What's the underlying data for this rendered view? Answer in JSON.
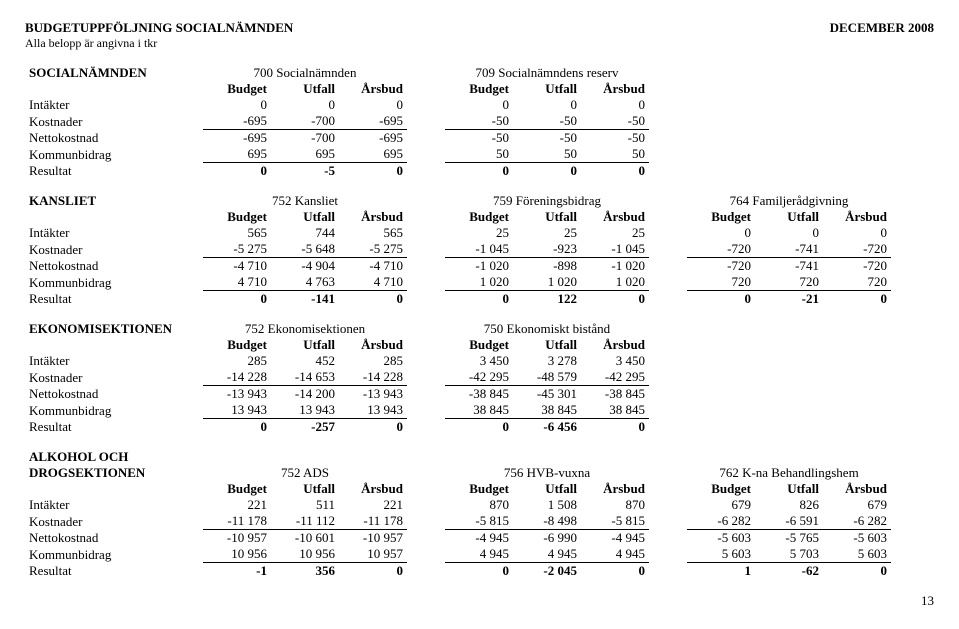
{
  "header": {
    "title_left": "BUDGETUPPFÖLJNING SOCIALNÄMNDEN",
    "title_right": "DECEMBER 2008",
    "subtitle": "Alla belopp är angivna i tkr"
  },
  "col_labels": {
    "budget": "Budget",
    "utfall": "Utfall",
    "arsbud": "Årsbud"
  },
  "row_labels": {
    "intakter": "Intäkter",
    "kostnader": "Kostnader",
    "nettokostnad": "Nettokostnad",
    "kommunbidrag": "Kommunbidrag",
    "resultat": "Resultat"
  },
  "sections": [
    {
      "left_label": "SOCIALNÄMNDEN",
      "groups": [
        {
          "title": "700 Socialnämnden"
        },
        {
          "title": "709 Socialnämndens reserv"
        }
      ],
      "rows": {
        "intakter": [
          [
            "0",
            "0",
            "0"
          ],
          [
            "0",
            "0",
            "0"
          ]
        ],
        "kostnader": [
          [
            "-695",
            "-700",
            "-695"
          ],
          [
            "-50",
            "-50",
            "-50"
          ]
        ],
        "nettokostnad": [
          [
            "-695",
            "-700",
            "-695"
          ],
          [
            "-50",
            "-50",
            "-50"
          ]
        ],
        "kommunbidrag": [
          [
            "695",
            "695",
            "695"
          ],
          [
            "50",
            "50",
            "50"
          ]
        ],
        "resultat": [
          [
            "0",
            "-5",
            "0"
          ],
          [
            "0",
            "0",
            "0"
          ]
        ]
      }
    },
    {
      "left_label": "KANSLIET",
      "groups": [
        {
          "title": "752 Kansliet"
        },
        {
          "title": "759 Föreningsbidrag"
        },
        {
          "title": "764 Familjerådgivning"
        }
      ],
      "rows": {
        "intakter": [
          [
            "565",
            "744",
            "565"
          ],
          [
            "25",
            "25",
            "25"
          ],
          [
            "0",
            "0",
            "0"
          ]
        ],
        "kostnader": [
          [
            "-5 275",
            "-5 648",
            "-5 275"
          ],
          [
            "-1 045",
            "-923",
            "-1 045"
          ],
          [
            "-720",
            "-741",
            "-720"
          ]
        ],
        "nettokostnad": [
          [
            "-4 710",
            "-4 904",
            "-4 710"
          ],
          [
            "-1 020",
            "-898",
            "-1 020"
          ],
          [
            "-720",
            "-741",
            "-720"
          ]
        ],
        "kommunbidrag": [
          [
            "4 710",
            "4 763",
            "4 710"
          ],
          [
            "1 020",
            "1 020",
            "1 020"
          ],
          [
            "720",
            "720",
            "720"
          ]
        ],
        "resultat": [
          [
            "0",
            "-141",
            "0"
          ],
          [
            "0",
            "122",
            "0"
          ],
          [
            "0",
            "-21",
            "0"
          ]
        ]
      }
    },
    {
      "left_label": "EKONOMISEKTIONEN",
      "groups": [
        {
          "title": "752 Ekonomisektionen"
        },
        {
          "title": "750 Ekonomiskt bistånd"
        }
      ],
      "rows": {
        "intakter": [
          [
            "285",
            "452",
            "285"
          ],
          [
            "3 450",
            "3 278",
            "3 450"
          ]
        ],
        "kostnader": [
          [
            "-14 228",
            "-14 653",
            "-14 228"
          ],
          [
            "-42 295",
            "-48 579",
            "-42 295"
          ]
        ],
        "nettokostnad": [
          [
            "-13 943",
            "-14 200",
            "-13 943"
          ],
          [
            "-38 845",
            "-45 301",
            "-38 845"
          ]
        ],
        "kommunbidrag": [
          [
            "13 943",
            "13 943",
            "13 943"
          ],
          [
            "38 845",
            "38 845",
            "38 845"
          ]
        ],
        "resultat": [
          [
            "0",
            "-257",
            "0"
          ],
          [
            "0",
            "-6 456",
            "0"
          ]
        ]
      }
    },
    {
      "left_label": "ALKOHOL OCH DROGSEKTIONEN",
      "left_label_2line": true,
      "groups": [
        {
          "title": "752 ADS"
        },
        {
          "title": "756 HVB-vuxna"
        },
        {
          "title": "762 K-na Behandlingshem"
        }
      ],
      "rows": {
        "intakter": [
          [
            "221",
            "511",
            "221"
          ],
          [
            "870",
            "1 508",
            "870"
          ],
          [
            "679",
            "826",
            "679"
          ]
        ],
        "kostnader": [
          [
            "-11 178",
            "-11 112",
            "-11 178"
          ],
          [
            "-5 815",
            "-8 498",
            "-5 815"
          ],
          [
            "-6 282",
            "-6 591",
            "-6 282"
          ]
        ],
        "nettokostnad": [
          [
            "-10 957",
            "-10 601",
            "-10 957"
          ],
          [
            "-4 945",
            "-6 990",
            "-4 945"
          ],
          [
            "-5 603",
            "-5 765",
            "-5 603"
          ]
        ],
        "kommunbidrag": [
          [
            "10 956",
            "10 956",
            "10 957"
          ],
          [
            "4 945",
            "4 945",
            "4 945"
          ],
          [
            "5 603",
            "5 703",
            "5 603"
          ]
        ],
        "resultat": [
          [
            "-1",
            "356",
            "0"
          ],
          [
            "0",
            "-2 045",
            "0"
          ],
          [
            "1",
            "-62",
            "0"
          ]
        ]
      }
    }
  ],
  "page_number": "13"
}
